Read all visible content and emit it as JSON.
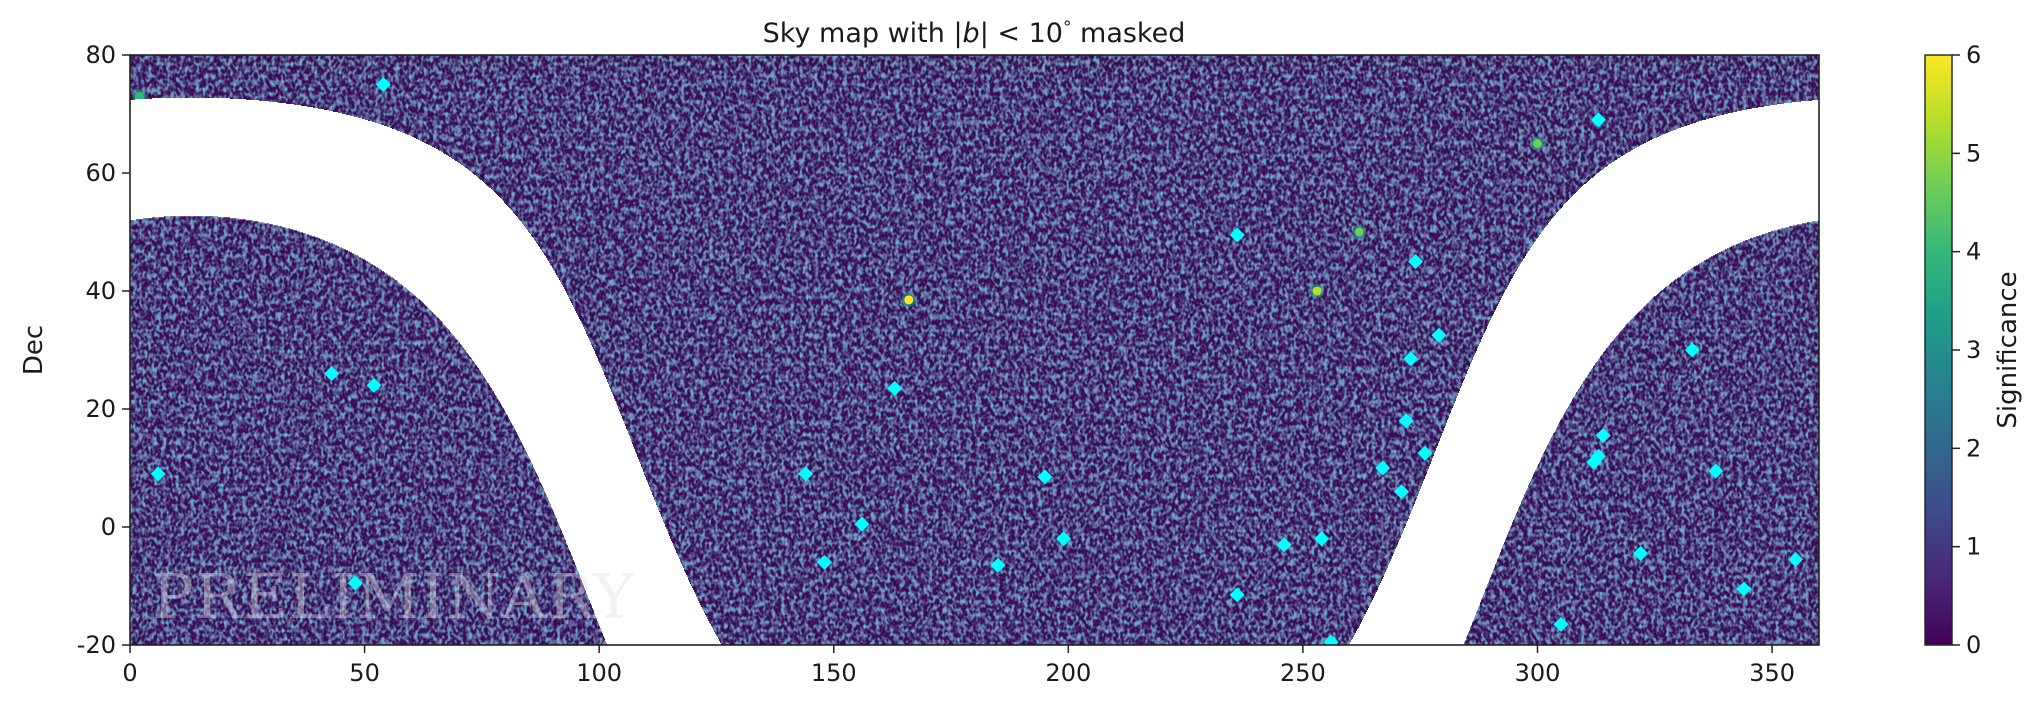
{
  "chart_data": {
    "type": "heatmap",
    "title": "Sky map with |b| < 10° masked",
    "title_parts": {
      "pre": "Sky map with |",
      "var": "b",
      "post": "| < 10",
      "deg": "°",
      "end": " masked"
    },
    "xlabel": "",
    "ylabel": "Dec",
    "xlim": [
      0,
      360
    ],
    "ylim": [
      -20,
      80
    ],
    "x_ticks": [
      0,
      50,
      100,
      150,
      200,
      250,
      300,
      350
    ],
    "y_ticks": [
      -20,
      0,
      20,
      40,
      60,
      80
    ],
    "mask": {
      "quantity": "galactic latitude b",
      "condition": "|b| < 10",
      "units": "deg"
    },
    "colorbar": {
      "label": "Significance",
      "min": 0,
      "max": 6,
      "ticks": [
        0,
        1,
        2,
        3,
        4,
        5,
        6
      ],
      "colormap": "viridis",
      "colors": [
        "#440154",
        "#482878",
        "#3e4989",
        "#31688e",
        "#26828e",
        "#1f9e89",
        "#35b779",
        "#6ece58",
        "#b5de2b",
        "#fde725"
      ]
    },
    "background_color": "#3b0b57",
    "hotspots": [
      {
        "ra": 166,
        "dec": 38.5,
        "significance": 6.0
      },
      {
        "ra": 253,
        "dec": 40,
        "significance": 5.5
      },
      {
        "ra": 262,
        "dec": 50,
        "significance": 4.5
      },
      {
        "ra": 300,
        "dec": 65,
        "significance": 4.5
      },
      {
        "ra": 2,
        "dec": 73,
        "significance": 4.0
      }
    ],
    "sources": {
      "marker": "diamond",
      "color": "#00ffff",
      "points": [
        [
          6,
          9
        ],
        [
          43,
          26
        ],
        [
          48,
          -9.5
        ],
        [
          52,
          24
        ],
        [
          54,
          75
        ],
        [
          144,
          9
        ],
        [
          148,
          -6
        ],
        [
          156,
          0.5
        ],
        [
          163,
          23.5
        ],
        [
          185,
          -6.5
        ],
        [
          195,
          8.5
        ],
        [
          199,
          -2
        ],
        [
          236,
          49.5
        ],
        [
          236,
          -11.5
        ],
        [
          246,
          -3
        ],
        [
          254,
          -2
        ],
        [
          256,
          -19.5
        ],
        [
          267,
          10
        ],
        [
          271,
          6
        ],
        [
          272,
          18
        ],
        [
          273,
          28.5
        ],
        [
          274,
          45
        ],
        [
          276,
          12.5
        ],
        [
          279,
          32.5
        ],
        [
          305,
          -16.5
        ],
        [
          312,
          11
        ],
        [
          313,
          69
        ],
        [
          313,
          12
        ],
        [
          314,
          15.5
        ],
        [
          322,
          -4.5
        ],
        [
          333,
          30
        ],
        [
          338,
          9.5
        ],
        [
          344,
          -10.5
        ],
        [
          355,
          -5.5
        ]
      ]
    }
  },
  "watermark": "PRELIMINARY"
}
